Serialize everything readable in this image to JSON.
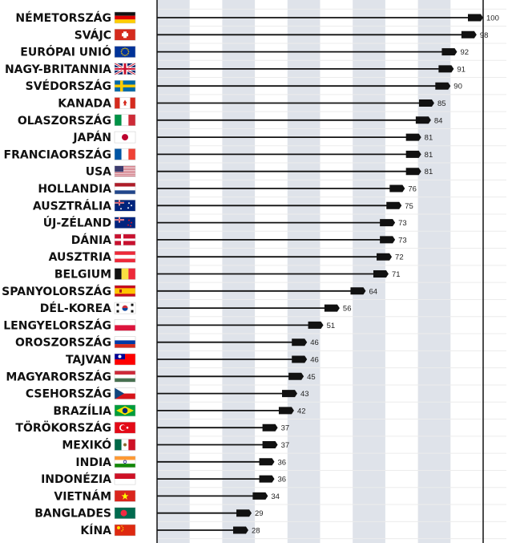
{
  "chart_data": {
    "type": "bar",
    "orientation": "horizontal",
    "categories": [
      "NÉMETORSZÁG",
      "SVÁJC",
      "EURÓPAI UNIÓ",
      "NAGY-BRITANNIA",
      "SVÉDORSZÁG",
      "KANADA",
      "OLASZORSZÁG",
      "JAPÁN",
      "FRANCIAORSZÁG",
      "USA",
      "HOLLANDIA",
      "AUSZTRÁLIA",
      "ÚJ-ZÉLAND",
      "DÁNIA",
      "AUSZTRIA",
      "BELGIUM",
      "SPANYOLORSZÁG",
      "DÉL-KOREA",
      "LENGYELORSZÁG",
      "OROSZORSZÁG",
      "TAJVAN",
      "MAGYARORSZÁG",
      "CSEHORSZÁG",
      "BRAZÍLIA",
      "TÖRÖKORSZÁG",
      "MEXIKÓ",
      "INDIA",
      "INDONÉZIA",
      "VIETNÁM",
      "BANGLADES",
      "KÍNA"
    ],
    "values": [
      100,
      98,
      92,
      91,
      90,
      85,
      84,
      81,
      81,
      81,
      76,
      75,
      73,
      73,
      72,
      71,
      64,
      56,
      51,
      46,
      46,
      45,
      43,
      42,
      37,
      37,
      36,
      36,
      34,
      29,
      28
    ],
    "flags": [
      "flag-de",
      "flag-ch",
      "flag-eu",
      "flag-gb",
      "flag-se",
      "flag-ca",
      "flag-it",
      "flag-jp",
      "flag-fr",
      "flag-us",
      "flag-nl",
      "flag-au",
      "flag-nz",
      "flag-dk",
      "flag-at",
      "flag-be",
      "flag-es",
      "flag-kr",
      "flag-pl",
      "flag-ru",
      "flag-tw",
      "flag-hu",
      "flag-cz",
      "flag-br",
      "flag-tr",
      "flag-mx",
      "flag-in",
      "flag-id",
      "flag-vn",
      "flag-bd",
      "flag-cn"
    ],
    "xlim": [
      0,
      100
    ],
    "xlabel": "",
    "ylabel": "",
    "title": "",
    "grid": "alternating vertical bands",
    "colors": {
      "bar": "#111111",
      "band": "#dfe3ea",
      "text": "#111111",
      "gridline": "#ececec"
    }
  }
}
